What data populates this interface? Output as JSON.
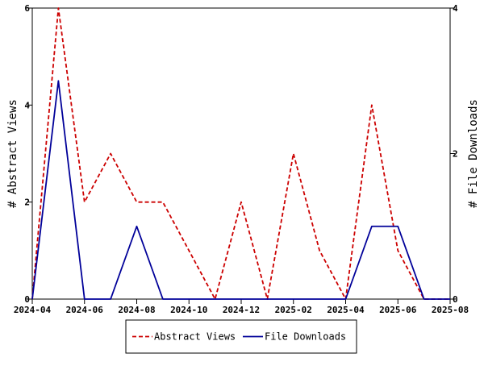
{
  "chart_data": {
    "type": "line",
    "x": [
      "2024-04",
      "2024-05",
      "2024-06",
      "2024-07",
      "2024-08",
      "2024-09",
      "2024-10",
      "2024-11",
      "2024-12",
      "2025-01",
      "2025-02",
      "2025-03",
      "2025-04",
      "2025-05",
      "2025-06",
      "2025-07",
      "2025-08"
    ],
    "x_ticks": [
      "2024-04",
      "2024-06",
      "2024-08",
      "2024-10",
      "2024-12",
      "2025-02",
      "2025-04",
      "2025-06",
      "2025-08"
    ],
    "series": [
      {
        "name": "Abstract Views",
        "axis": "left",
        "color": "#cc0000",
        "style": "dashed",
        "values": [
          0,
          6,
          2,
          3,
          2,
          2,
          1,
          0,
          2,
          0,
          3,
          1,
          0,
          4,
          1,
          0,
          0
        ]
      },
      {
        "name": "File Downloads",
        "axis": "right",
        "color": "#000099",
        "style": "solid",
        "values": [
          0,
          3,
          0,
          0,
          1,
          0,
          0,
          0,
          0,
          0,
          0,
          0,
          0,
          1,
          1,
          0,
          0
        ]
      }
    ],
    "ylabel": "# Abstract Views",
    "y2label": "# File Downloads",
    "ylim": [
      0,
      6
    ],
    "y2lim": [
      0,
      4
    ],
    "yticks": [
      "0",
      "2",
      "4",
      "6"
    ],
    "y2ticks": [
      "0",
      "2",
      "4"
    ],
    "grid": false,
    "legend_position": "bottom"
  }
}
